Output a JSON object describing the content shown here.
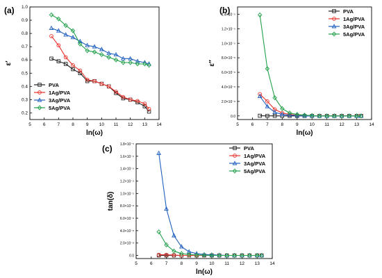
{
  "colors": {
    "PVA": "#222222",
    "1Ag/PVA": "#e8312a",
    "3Ag/PVA": "#1f5fbf",
    "5Ag/PVA": "#22a04a"
  },
  "chart_data": [
    {
      "id": "a",
      "panel_label": "(a)",
      "type": "line",
      "xlabel": "ln(ω)",
      "ylabel": "ε′",
      "xlim": [
        5,
        14
      ],
      "ylim": [
        0.15,
        1.0
      ],
      "xticks": [
        "5",
        "6",
        "7",
        "8",
        "9",
        "10",
        "11",
        "12",
        "13",
        "14"
      ],
      "yticks": [
        "0.2",
        "0.3",
        "0.4",
        "0.5",
        "0.6",
        "0.7",
        "0.8",
        "0.9",
        "1.0"
      ],
      "legend": {
        "position": "bottom-left",
        "entries": [
          "PVA",
          "1Ag/PVA",
          "3Ag/PVA",
          "5Ag/PVA"
        ]
      },
      "x": [
        6.5,
        7.0,
        7.5,
        8.0,
        8.5,
        9.0,
        9.5,
        10.0,
        10.5,
        11.0,
        11.5,
        12.0,
        12.5,
        13.0,
        13.3
      ],
      "series": [
        {
          "name": "PVA",
          "values": [
            0.61,
            0.59,
            0.57,
            0.53,
            0.5,
            0.44,
            0.44,
            0.42,
            0.4,
            0.35,
            0.31,
            0.3,
            0.28,
            0.25,
            0.21
          ]
        },
        {
          "name": "1Ag/PVA",
          "values": [
            0.78,
            0.71,
            0.62,
            0.56,
            0.52,
            0.45,
            0.44,
            0.42,
            0.4,
            0.36,
            0.32,
            0.3,
            0.29,
            0.27,
            0.23
          ]
        },
        {
          "name": "3Ag/PVA",
          "values": [
            0.84,
            0.82,
            0.79,
            0.77,
            0.74,
            0.71,
            0.7,
            0.68,
            0.65,
            0.64,
            0.61,
            0.61,
            0.59,
            0.58,
            0.57
          ]
        },
        {
          "name": "5Ag/PVA",
          "values": [
            0.94,
            0.91,
            0.86,
            0.82,
            0.72,
            0.67,
            0.66,
            0.64,
            0.62,
            0.6,
            0.58,
            0.58,
            0.57,
            0.57,
            0.56
          ]
        }
      ]
    },
    {
      "id": "b",
      "panel_label": "(b)",
      "type": "line",
      "xlabel": "ln(ω)",
      "ylabel": "ε″",
      "xlim": [
        5,
        14
      ],
      "ylim": [
        -0.05,
        1.5
      ],
      "xticks": [
        "5",
        "6",
        "7",
        "8",
        "9",
        "10",
        "11",
        "12",
        "13",
        "14"
      ],
      "yticks": [
        "0.0",
        "2.0×10⁻⁸",
        "4.0×10⁻⁸",
        "6.0×10⁻⁸",
        "8.0×10⁻⁸",
        "1.0×10⁻⁵",
        "1.2×10⁻⁵",
        "1.4×10⁻⁵"
      ],
      "legend": {
        "position": "top-right",
        "entries": [
          "PVA",
          "1Ag/PVA",
          "3Ag/PVA",
          "5Ag/PVA"
        ]
      },
      "x": [
        6.5,
        7.0,
        7.5,
        8.0,
        8.5,
        9.0,
        9.5,
        10.0,
        10.5,
        11.0,
        11.5,
        12.0,
        12.5,
        13.0,
        13.3
      ],
      "series": [
        {
          "name": "PVA",
          "values": [
            0.002,
            0.001,
            0.001,
            0.0,
            0.0,
            0.0,
            0.0,
            0.0,
            0.0,
            0.0,
            0.0,
            0.0,
            0.0,
            0.0,
            0.0
          ]
        },
        {
          "name": "1Ag/PVA",
          "values": [
            0.3,
            0.2,
            0.09,
            0.04,
            0.02,
            0.01,
            0.005,
            0.0,
            0.0,
            0.0,
            0.0,
            0.0,
            0.0,
            0.0,
            0.0
          ]
        },
        {
          "name": "3Ag/PVA",
          "values": [
            0.27,
            0.13,
            0.05,
            0.02,
            0.01,
            0.005,
            0.0,
            0.0,
            0.0,
            0.0,
            0.0,
            0.0,
            0.0,
            0.0,
            0.0
          ]
        },
        {
          "name": "5Ag/PVA",
          "values": [
            1.39,
            0.65,
            0.25,
            0.1,
            0.04,
            0.02,
            0.01,
            0.005,
            0.0,
            0.0,
            0.0,
            0.0,
            0.0,
            0.0,
            0.0
          ]
        }
      ]
    },
    {
      "id": "c",
      "panel_label": "(c)",
      "type": "line",
      "xlabel": "ln(ω)",
      "ylabel": "tan(δ)",
      "xlim": [
        5,
        14
      ],
      "ylim": [
        -0.05,
        1.8
      ],
      "xticks": [
        "5",
        "6",
        "7",
        "8",
        "9",
        "10",
        "11",
        "12",
        "13",
        "14"
      ],
      "yticks": [
        "0.0",
        "2.0×10⁻⁸",
        "4.0×10⁻⁸",
        "6.0×10⁻⁸",
        "8.0×10⁻⁸",
        "1.0×10⁻⁵",
        "1.2×10⁻⁵",
        "1.4×10⁻⁵",
        "1.6×10⁻⁵",
        "1.8×10⁻⁵"
      ],
      "legend": {
        "position": "top-right",
        "entries": [
          "PVA",
          "1Ag/PVA",
          "3Ag/PVA",
          "5Ag/PVA"
        ]
      },
      "x": [
        6.5,
        7.0,
        7.5,
        8.0,
        8.5,
        9.0,
        9.5,
        10.0,
        10.5,
        11.0,
        11.5,
        12.0,
        12.5,
        13.0,
        13.3
      ],
      "series": [
        {
          "name": "PVA",
          "values": [
            0.0,
            0.0,
            0.0,
            0.0,
            0.0,
            0.0,
            0.0,
            0.0,
            0.0,
            0.0,
            0.0,
            0.0,
            0.0,
            0.0,
            0.0
          ]
        },
        {
          "name": "1Ag/PVA",
          "values": [
            0.01,
            0.01,
            0.005,
            0.0,
            0.0,
            0.0,
            0.0,
            0.0,
            0.0,
            0.0,
            0.0,
            0.0,
            0.0,
            0.0,
            0.0
          ]
        },
        {
          "name": "3Ag/PVA",
          "values": [
            1.65,
            0.75,
            0.32,
            0.14,
            0.06,
            0.03,
            0.015,
            0.01,
            0.005,
            0.0,
            0.0,
            0.0,
            0.0,
            0.0,
            0.0
          ]
        },
        {
          "name": "5Ag/PVA",
          "values": [
            0.38,
            0.17,
            0.07,
            0.03,
            0.015,
            0.008,
            0.004,
            0.0,
            0.0,
            0.0,
            0.0,
            0.0,
            0.0,
            0.0,
            0.0
          ]
        }
      ]
    }
  ]
}
